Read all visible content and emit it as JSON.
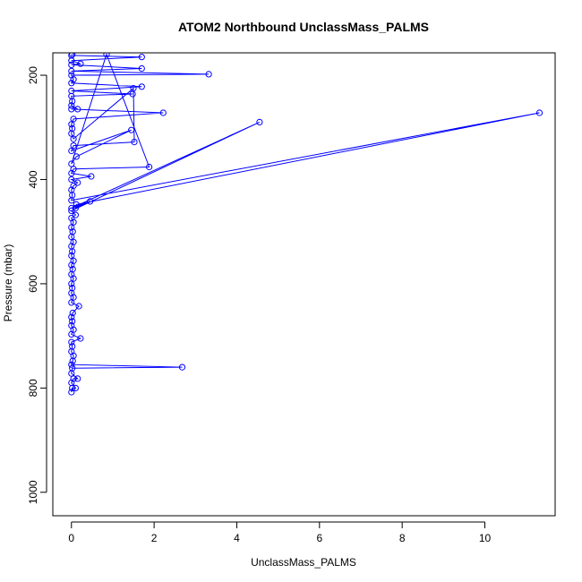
{
  "chart_data": {
    "type": "line",
    "title": "ATOM2 Northbound UnclassMass_PALMS",
    "xlabel": "UnclassMass_PALMS",
    "ylabel": "Pressure (mbar)",
    "xlim": [
      -0.45,
      11.7
    ],
    "ylim": [
      1045,
      157
    ],
    "y_reversed": true,
    "x_ticks": [
      0,
      2,
      4,
      6,
      8,
      10
    ],
    "y_ticks": [
      200,
      400,
      600,
      800,
      1000
    ],
    "marker": "open-circle",
    "grid": false,
    "legend": "none",
    "series": [
      {
        "color": "#0000ff",
        "points": [
          [
            0.0,
            808
          ],
          [
            0.02,
            800
          ],
          [
            0.1,
            800
          ],
          [
            0.0,
            790
          ],
          [
            0.05,
            782
          ],
          [
            0.15,
            782
          ],
          [
            0.0,
            772
          ],
          [
            0.02,
            762
          ],
          [
            2.68,
            760
          ],
          [
            0.0,
            755
          ],
          [
            0.03,
            748
          ],
          [
            0.05,
            738
          ],
          [
            0.0,
            730
          ],
          [
            0.02,
            720
          ],
          [
            0.0,
            712
          ],
          [
            0.22,
            705
          ],
          [
            0.0,
            697
          ],
          [
            0.05,
            688
          ],
          [
            0.0,
            680
          ],
          [
            0.02,
            672
          ],
          [
            0.0,
            664
          ],
          [
            0.03,
            656
          ],
          [
            0.18,
            643
          ],
          [
            0.0,
            636
          ],
          [
            0.05,
            626
          ],
          [
            0.0,
            618
          ],
          [
            0.02,
            608
          ],
          [
            0.0,
            600
          ],
          [
            0.05,
            590
          ],
          [
            0.0,
            582
          ],
          [
            0.03,
            572
          ],
          [
            0.0,
            564
          ],
          [
            0.05,
            556
          ],
          [
            0.0,
            546
          ],
          [
            0.02,
            538
          ],
          [
            0.0,
            528
          ],
          [
            0.05,
            520
          ],
          [
            0.0,
            510
          ],
          [
            0.03,
            500
          ],
          [
            0.0,
            492
          ],
          [
            0.05,
            482
          ],
          [
            0.0,
            474
          ],
          [
            0.1,
            468
          ],
          [
            0.0,
            460
          ],
          [
            4.55,
            290
          ],
          [
            0.0,
            455
          ],
          [
            0.45,
            442
          ],
          [
            0.1,
            455
          ],
          [
            0.12,
            448
          ],
          [
            11.32,
            272
          ],
          [
            0.0,
            440
          ],
          [
            0.02,
            430
          ],
          [
            0.0,
            420
          ],
          [
            0.05,
            412
          ],
          [
            0.15,
            406
          ],
          [
            0.0,
            400
          ],
          [
            0.48,
            394
          ],
          [
            0.0,
            388
          ],
          [
            0.05,
            380
          ],
          [
            1.88,
            376
          ],
          [
            0.85,
            160
          ],
          [
            0.0,
            370
          ],
          [
            0.12,
            356
          ],
          [
            1.45,
            305
          ],
          [
            0.0,
            345
          ],
          [
            0.05,
            335
          ],
          [
            1.52,
            328
          ],
          [
            1.5,
            225
          ],
          [
            0.05,
            322
          ],
          [
            0.0,
            312
          ],
          [
            0.02,
            302
          ],
          [
            0.0,
            294
          ],
          [
            0.05,
            284
          ],
          [
            2.22,
            272
          ],
          [
            0.0,
            265
          ],
          [
            0.15,
            265
          ],
          [
            0.0,
            258
          ],
          [
            0.02,
            250
          ],
          [
            0.0,
            240
          ],
          [
            1.48,
            236
          ],
          [
            0.0,
            230
          ],
          [
            1.7,
            222
          ],
          [
            0.0,
            215
          ],
          [
            0.05,
            208
          ],
          [
            0.0,
            200
          ],
          [
            3.32,
            198
          ],
          [
            0.0,
            192
          ],
          [
            1.7,
            187
          ],
          [
            0.0,
            180
          ],
          [
            0.22,
            178
          ],
          [
            0.0,
            172
          ],
          [
            1.7,
            165
          ],
          [
            0.0,
            162
          ],
          [
            0.02,
            160
          ]
        ]
      }
    ]
  }
}
